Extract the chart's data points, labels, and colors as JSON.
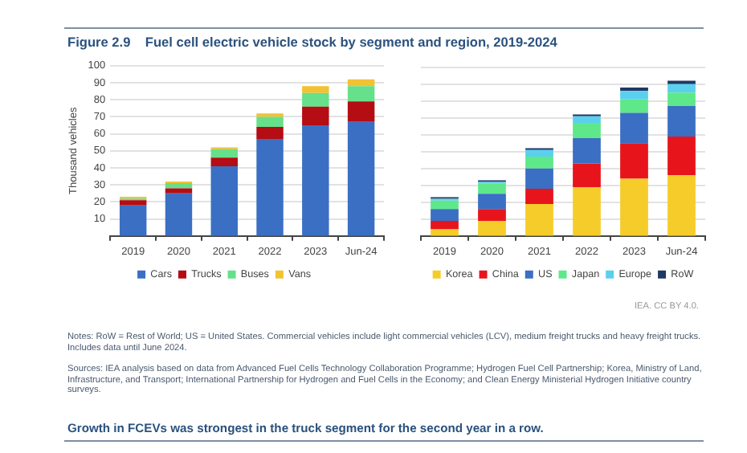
{
  "chart_data": [
    {
      "type": "bar",
      "title": "Figure 2.9    Fuel cell electric vehicle stock by segment and region, 2019-2024",
      "ylabel": "Thousand vehicles",
      "categories": [
        "2019",
        "2020",
        "2021",
        "2022",
        "2023",
        "Jun-24"
      ],
      "stacked": true,
      "ylim": [
        0,
        100
      ],
      "yticks": [
        10,
        20,
        30,
        40,
        50,
        60,
        70,
        80,
        90,
        100
      ],
      "grid": "y",
      "legend": "bottom",
      "series": [
        {
          "name": "Cars",
          "color": "#3a6fc4",
          "values": [
            18,
            25,
            41,
            57,
            65,
            67
          ]
        },
        {
          "name": "Trucks",
          "color": "#b40d14",
          "values": [
            3,
            3,
            5,
            7,
            11,
            12
          ]
        },
        {
          "name": "Buses",
          "color": "#66e08a",
          "values": [
            1,
            3,
            5,
            6,
            8,
            9
          ]
        },
        {
          "name": "Vans",
          "color": "#f2c232",
          "values": [
            1,
            1,
            1,
            2,
            4,
            4
          ]
        }
      ]
    },
    {
      "type": "bar",
      "categories": [
        "2019",
        "2020",
        "2021",
        "2022",
        "2023",
        "Jun-24"
      ],
      "stacked": true,
      "ylim": [
        0,
        100
      ],
      "yticks": [
        10,
        20,
        30,
        40,
        50,
        60,
        70,
        80,
        90,
        100
      ],
      "tick_labels": "x",
      "grid": "y",
      "legend": "bottom",
      "series": [
        {
          "name": "Korea",
          "color": "#f5cc2a",
          "values": [
            4,
            9,
            19,
            29,
            34,
            36
          ]
        },
        {
          "name": "China",
          "color": "#e8141c",
          "values": [
            5,
            7,
            9,
            14,
            21,
            23
          ]
        },
        {
          "name": "US",
          "color": "#3a6fc4",
          "values": [
            7,
            9,
            12,
            15,
            18,
            18
          ]
        },
        {
          "name": "Japan",
          "color": "#5ee88a",
          "values": [
            5,
            6,
            7,
            9,
            8,
            8
          ]
        },
        {
          "name": "Europe",
          "color": "#5ad0ee",
          "values": [
            1,
            1,
            4,
            4,
            5,
            5
          ]
        },
        {
          "name": "RoW",
          "color": "#1f3864",
          "values": [
            1,
            1,
            1,
            1,
            2,
            2
          ]
        }
      ],
      "annotations": [
        "IEA. CC BY 4.0.",
        "Notes: RoW = Rest of World; US = United States. Commercial vehicles include light commercial vehicles (LCV), medium freight trucks and heavy freight trucks. Includes data until June 2024.",
        "Sources: IEA analysis based on data from Advanced Fuel Cells Technology Collaboration Programme; Hydrogen Fuel Cell Partnership; Korea, Ministry of Land, Infrastructure, and Transport; International Partnership for Hydrogen and Fuel Cells in the Economy; and Clean Energy Ministerial Hydrogen Initiative country surveys.",
        "Growth in FCEVs was strongest in the truck segment for the second year in a row."
      ]
    }
  ]
}
